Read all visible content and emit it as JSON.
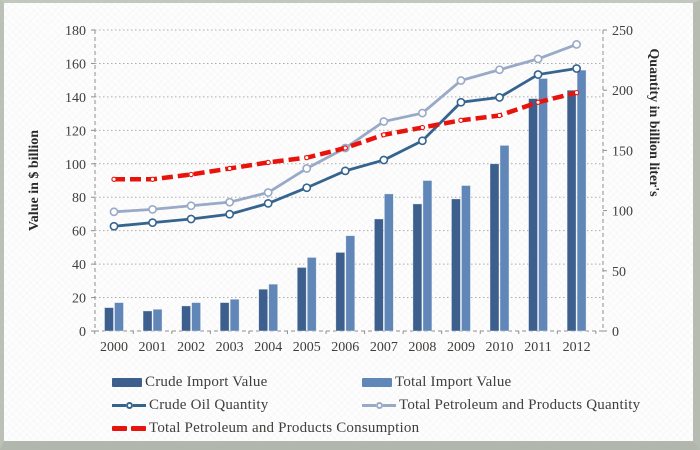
{
  "figure": {
    "frame_color": "#b2b7ae",
    "background": "#fdfdfd",
    "text_color": "#413e3b",
    "grid_color": "#adadad",
    "axis_color": "#8f8f8f"
  },
  "chart_data": {
    "type": "bar",
    "subtype": "combo dual-axis: grouped bars (left axis) + 3 lines (right axis)",
    "title": "",
    "categories": [
      "2000",
      "2001",
      "2002",
      "2003",
      "2004",
      "2005",
      "2006",
      "2007",
      "2008",
      "2009",
      "2010",
      "2011",
      "2012"
    ],
    "left_axis": {
      "label": "Value in $ billion",
      "min": 0,
      "max": 180,
      "step": 20,
      "ticks": [
        "0",
        "20",
        "40",
        "60",
        "80",
        "100",
        "120",
        "140",
        "160",
        "180"
      ]
    },
    "right_axis": {
      "label": "Quantity in billion liter's",
      "min": 0,
      "max": 250,
      "step": 50,
      "ticks": [
        "0",
        "50",
        "100",
        "150",
        "200",
        "250"
      ]
    },
    "grid": "horizontal dotted lines, dashed plot border",
    "legend_position": "bottom, two columns",
    "series": [
      {
        "name": "Crude Import Value",
        "type": "bar",
        "axis": "left",
        "color": "#3d5f8e",
        "values": [
          14,
          12,
          15,
          17,
          25,
          38,
          47,
          67,
          76,
          79,
          100,
          139,
          144
        ]
      },
      {
        "name": "Total Import Value",
        "type": "bar",
        "axis": "left",
        "color": "#6187b8",
        "values": [
          17,
          13,
          17,
          19,
          28,
          44,
          57,
          82,
          90,
          87,
          111,
          151,
          156
        ]
      },
      {
        "name": "Crude Oil Quantity",
        "type": "line",
        "axis": "right",
        "color": "#35648f",
        "marker": "circle",
        "dashed": false,
        "values": [
          87,
          90,
          93,
          97,
          106,
          119,
          133,
          142,
          158,
          190,
          194,
          213,
          218
        ]
      },
      {
        "name": "Total Petroleum and Products Quantity",
        "type": "line",
        "axis": "right",
        "color": "#99aac7",
        "marker": "circle",
        "dashed": false,
        "values": [
          99,
          101,
          104,
          107,
          115,
          135,
          152,
          174,
          181,
          208,
          217,
          226,
          238
        ]
      },
      {
        "name": "Total Petroleum and Products Consumption",
        "type": "line",
        "axis": "right",
        "color": "#e8140c",
        "marker": "dot",
        "dashed": true,
        "values": [
          126,
          126,
          130,
          135,
          140,
          144,
          152,
          163,
          169,
          175,
          179,
          190,
          198
        ]
      }
    ]
  }
}
